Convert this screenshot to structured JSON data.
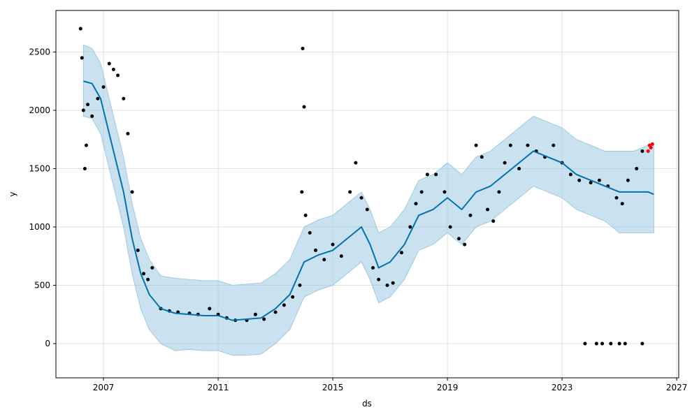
{
  "chart_data": {
    "type": "forecast",
    "x_label": "ds",
    "y_label": "y",
    "xlim": [
      2005.34,
      2027.07
    ],
    "ylim": [
      -293,
      2856
    ],
    "xticks": [
      2007,
      2011,
      2015,
      2019,
      2023,
      2027
    ],
    "yticks": [
      0,
      500,
      1000,
      1500,
      2000,
      2500
    ],
    "grid": true,
    "forecast": {
      "line_color": "#0072b2",
      "band_color": "#9ecae1",
      "x": [
        2006.3,
        2006.6,
        2006.9,
        2007.1,
        2007.4,
        2007.7,
        2008.0,
        2008.3,
        2008.6,
        2009.0,
        2009.5,
        2010.0,
        2010.5,
        2011.0,
        2011.5,
        2012.0,
        2012.5,
        2013.0,
        2013.5,
        2014.0,
        2014.5,
        2015.0,
        2015.5,
        2016.0,
        2016.3,
        2016.6,
        2017.0,
        2017.5,
        2018.0,
        2018.5,
        2019.0,
        2019.5,
        2020.0,
        2020.5,
        2021.0,
        2021.5,
        2022.0,
        2022.5,
        2023.0,
        2023.5,
        2024.0,
        2024.5,
        2025.0,
        2025.5,
        2026.0,
        2026.2
      ],
      "yhat": [
        2250,
        2230,
        2100,
        1900,
        1600,
        1300,
        900,
        600,
        420,
        300,
        260,
        250,
        240,
        240,
        200,
        210,
        220,
        300,
        420,
        700,
        760,
        800,
        900,
        1000,
        850,
        650,
        700,
        850,
        1100,
        1150,
        1250,
        1150,
        1300,
        1350,
        1450,
        1550,
        1650,
        1600,
        1550,
        1450,
        1400,
        1350,
        1300,
        1300,
        1300,
        1280
      ],
      "upper": [
        2560,
        2530,
        2400,
        2200,
        1900,
        1600,
        1200,
        900,
        720,
        580,
        560,
        550,
        540,
        540,
        500,
        510,
        520,
        600,
        720,
        1000,
        1060,
        1100,
        1200,
        1300,
        1150,
        950,
        1000,
        1150,
        1400,
        1450,
        1550,
        1450,
        1600,
        1650,
        1750,
        1850,
        1950,
        1900,
        1850,
        1750,
        1700,
        1650,
        1650,
        1650,
        1700,
        1700
      ],
      "lower": [
        1950,
        1930,
        1800,
        1600,
        1300,
        1000,
        600,
        300,
        120,
        0,
        -60,
        -50,
        -60,
        -60,
        -100,
        -100,
        -90,
        0,
        120,
        400,
        460,
        500,
        600,
        700,
        550,
        350,
        400,
        550,
        800,
        850,
        950,
        850,
        1000,
        1050,
        1150,
        1250,
        1350,
        1300,
        1250,
        1150,
        1100,
        1050,
        950,
        950,
        950,
        950
      ]
    },
    "points": {
      "color": "#000000",
      "x": [
        2006.2,
        2006.25,
        2006.3,
        2006.35,
        2006.4,
        2006.45,
        2006.6,
        2006.8,
        2007.0,
        2007.2,
        2007.35,
        2007.5,
        2007.7,
        2007.85,
        2008.0,
        2008.2,
        2008.4,
        2008.55,
        2008.7,
        2009.0,
        2009.3,
        2009.6,
        2010.0,
        2010.3,
        2010.7,
        2011.0,
        2011.3,
        2011.6,
        2012.0,
        2012.3,
        2012.6,
        2013.0,
        2013.3,
        2013.6,
        2013.85,
        2013.92,
        2013.95,
        2014.0,
        2014.05,
        2014.2,
        2014.4,
        2014.7,
        2015.0,
        2015.3,
        2015.6,
        2015.8,
        2016.0,
        2016.2,
        2016.4,
        2016.6,
        2016.9,
        2017.1,
        2017.4,
        2017.7,
        2017.9,
        2018.1,
        2018.3,
        2018.6,
        2018.9,
        2019.1,
        2019.4,
        2019.6,
        2019.8,
        2020.0,
        2020.2,
        2020.4,
        2020.6,
        2020.8,
        2021.0,
        2021.2,
        2021.5,
        2021.8,
        2022.1,
        2022.4,
        2022.7,
        2023.0,
        2023.3,
        2023.6,
        2024.0,
        2024.3,
        2024.6,
        2024.9,
        2025.1,
        2025.3,
        2025.6,
        2025.8,
        2023.8,
        2024.2,
        2024.4,
        2024.7,
        2025.0,
        2025.2,
        2025.8
      ],
      "y": [
        2700,
        2450,
        2000,
        1500,
        1700,
        2050,
        1950,
        2100,
        2200,
        2400,
        2350,
        2300,
        2100,
        1800,
        1300,
        800,
        600,
        550,
        650,
        300,
        280,
        270,
        260,
        250,
        300,
        250,
        220,
        200,
        200,
        250,
        210,
        270,
        330,
        400,
        500,
        1300,
        2530,
        2030,
        1100,
        950,
        800,
        720,
        850,
        750,
        1300,
        1550,
        1250,
        1150,
        650,
        550,
        500,
        520,
        780,
        1000,
        1200,
        1300,
        1450,
        1450,
        1300,
        1000,
        900,
        850,
        1100,
        1700,
        1600,
        1150,
        1050,
        1300,
        1550,
        1700,
        1500,
        1700,
        1650,
        1600,
        1700,
        1550,
        1450,
        1400,
        1380,
        1400,
        1350,
        1250,
        1200,
        1400,
        1500,
        1650,
        0,
        0,
        0,
        0,
        0,
        0,
        0
      ]
    },
    "recent": {
      "color": "#ff0000",
      "x": [
        2026.0,
        2026.05,
        2026.1,
        2026.15
      ],
      "y": [
        1650,
        1700,
        1680,
        1710
      ]
    }
  }
}
